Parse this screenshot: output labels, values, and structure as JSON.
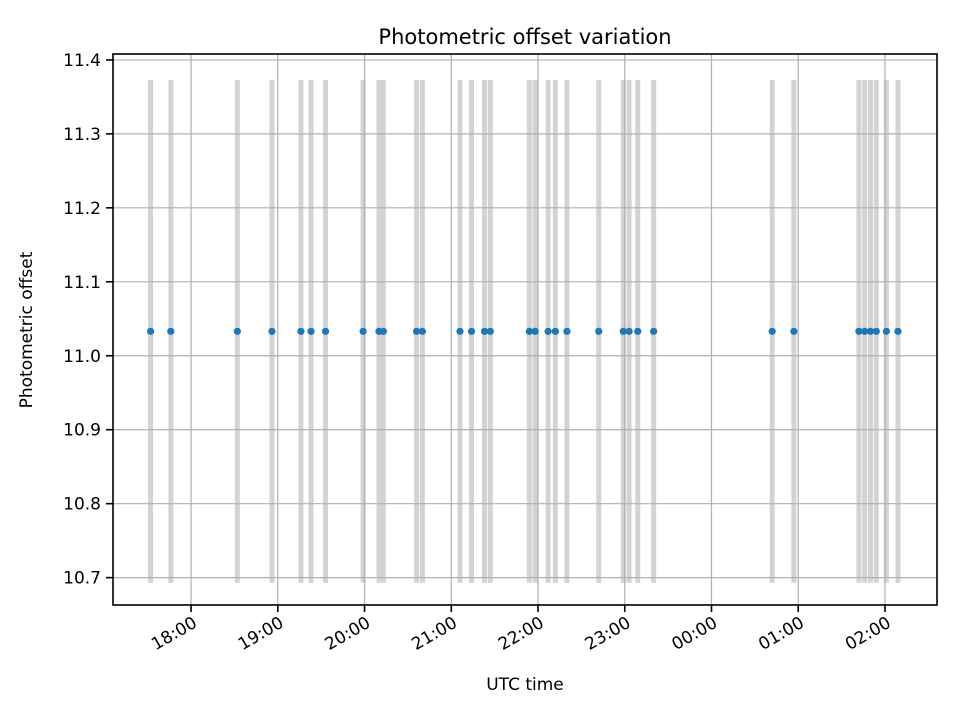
{
  "chart_data": {
    "type": "scatter",
    "title": "Photometric offset variation",
    "xlabel": "UTC time",
    "ylabel": "Photometric offset",
    "x_tick_labels": [
      "18:00",
      "19:00",
      "20:00",
      "21:00",
      "22:00",
      "23:00",
      "00:00",
      "01:00",
      "02:00"
    ],
    "y_tick_labels": [
      "11.4",
      "11.3",
      "11.2",
      "11.1",
      "11.0",
      "10.9",
      "10.8",
      "10.7"
    ],
    "xlim": [
      "17:06",
      "02:36"
    ],
    "ylim": [
      10.663,
      11.408
    ],
    "grid": true,
    "legend": false,
    "series": [
      {
        "name": "photometric-offset-points",
        "marker": "circle",
        "marker_color": "#1f77b4",
        "errorbar_color": "#d3d3d3",
        "yerr": 0.34,
        "x": [
          "17:32",
          "17:46",
          "18:32",
          "18:56",
          "19:16",
          "19:23",
          "19:33",
          "19:59",
          "20:10",
          "20:13",
          "20:36",
          "20:40",
          "21:06",
          "21:14",
          "21:23",
          "21:27",
          "21:54",
          "21:58",
          "22:07",
          "22:12",
          "22:20",
          "22:42",
          "22:59",
          "23:03",
          "23:09",
          "23:20",
          "00:42",
          "00:57",
          "01:42",
          "01:46",
          "01:50",
          "01:54",
          "02:01",
          "02:09"
        ],
        "y": [
          11.033,
          11.033,
          11.033,
          11.033,
          11.033,
          11.033,
          11.033,
          11.033,
          11.033,
          11.033,
          11.033,
          11.033,
          11.033,
          11.033,
          11.033,
          11.033,
          11.033,
          11.033,
          11.033,
          11.033,
          11.033,
          11.033,
          11.033,
          11.033,
          11.033,
          11.033,
          11.033,
          11.033,
          11.033,
          11.033,
          11.033,
          11.033,
          11.033,
          11.033
        ]
      }
    ]
  },
  "colors": {
    "marker": "#1f77b4",
    "errorbar": "#d3d3d3",
    "grid": "#b0b0b0",
    "axis": "#000000",
    "background": "#ffffff"
  }
}
